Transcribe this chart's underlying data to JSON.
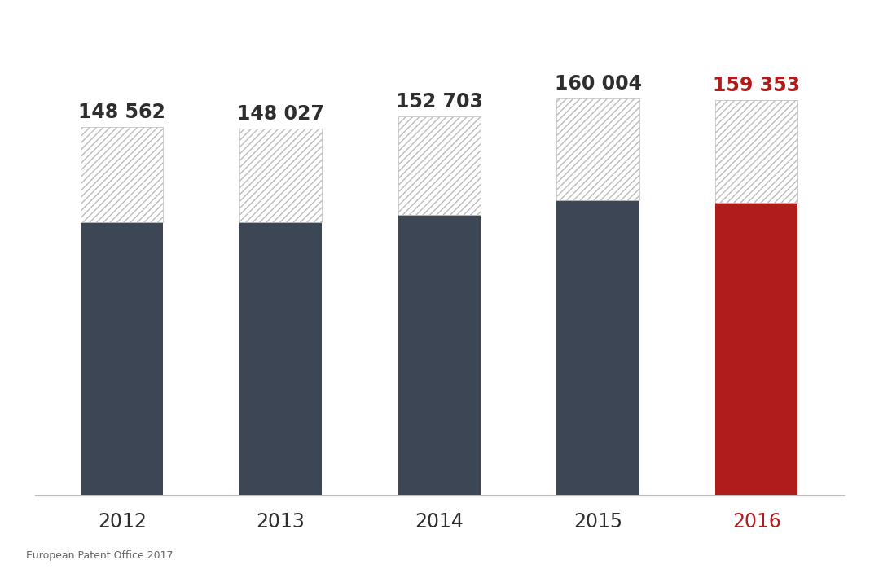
{
  "years": [
    "2012",
    "2013",
    "2014",
    "2015",
    "2016"
  ],
  "total_values": [
    148562,
    148027,
    152703,
    160004,
    159353
  ],
  "solid_values": [
    110000,
    110000,
    113000,
    119000,
    118000
  ],
  "bar_colors": [
    "#3d4655",
    "#3d4655",
    "#3d4655",
    "#3d4655",
    "#b01c1c"
  ],
  "label_colors": [
    "#2e2e2e",
    "#2e2e2e",
    "#2e2e2e",
    "#2e2e2e",
    "#b01c1c"
  ],
  "year_colors": [
    "#2e2e2e",
    "#2e2e2e",
    "#2e2e2e",
    "#2e2e2e",
    "#b01c1c"
  ],
  "value_labels": [
    "148 562",
    "148 027",
    "152 703",
    "160 004",
    "159 353"
  ],
  "ymax": 170000,
  "background_color": "#ffffff",
  "footer_text": "European Patent Office 2017",
  "value_label_fontsize": 17,
  "year_label_fontsize": 17,
  "footer_fontsize": 9,
  "bar_width": 0.52
}
